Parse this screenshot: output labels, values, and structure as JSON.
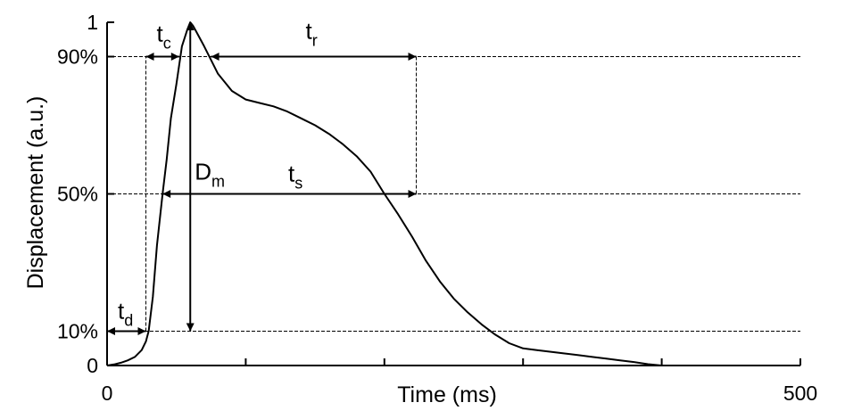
{
  "chart_data": {
    "type": "line",
    "title": "",
    "xlabel": "Time (ms)",
    "ylabel": "Displacement (a.u.)",
    "xlim": [
      0,
      500
    ],
    "ylim": [
      0,
      1
    ],
    "x_tick_values": [
      0,
      100,
      200,
      300,
      400,
      500
    ],
    "x_tick_labels": [
      "0",
      "",
      "",
      "",
      "",
      "500"
    ],
    "y_tick_values": [
      0,
      0.1,
      0.5,
      0.9,
      1
    ],
    "y_tick_labels": [
      "0",
      "10%",
      "50%",
      "90%",
      "1"
    ],
    "grid": false,
    "legend": "none",
    "series": [
      {
        "x": [
          0,
          5,
          10,
          15,
          20,
          25,
          28,
          30,
          33,
          36,
          40,
          43,
          46,
          50,
          54,
          58,
          60,
          62,
          64,
          66,
          70,
          75,
          80,
          90,
          100,
          110,
          120,
          130,
          140,
          150,
          160,
          170,
          180,
          190,
          200,
          210,
          220,
          230,
          240,
          250,
          260,
          270,
          280,
          290,
          300,
          310,
          320,
          330,
          340,
          350,
          360,
          370,
          380,
          390,
          400,
          410,
          420,
          430,
          440
        ],
        "y": [
          0,
          0.003,
          0.008,
          0.015,
          0.025,
          0.045,
          0.07,
          0.1,
          0.2,
          0.35,
          0.5,
          0.6,
          0.72,
          0.82,
          0.93,
          0.98,
          1.0,
          0.99,
          0.975,
          0.96,
          0.93,
          0.89,
          0.85,
          0.8,
          0.775,
          0.765,
          0.755,
          0.74,
          0.72,
          0.7,
          0.675,
          0.645,
          0.61,
          0.565,
          0.5,
          0.44,
          0.375,
          0.305,
          0.245,
          0.195,
          0.155,
          0.12,
          0.09,
          0.065,
          0.05,
          0.045,
          0.04,
          0.035,
          0.03,
          0.025,
          0.02,
          0.015,
          0.01,
          0.004,
          0.0,
          0.0,
          0.0,
          0.0,
          0.0
        ]
      }
    ],
    "reference_lines": [
      {
        "y": 0.9,
        "label": "90%"
      },
      {
        "y": 0.5,
        "label": "50%"
      },
      {
        "y": 0.1,
        "label": "10%"
      }
    ],
    "marker_lines": [
      {
        "x": 28,
        "y0": 0.1,
        "y1": 0.9
      },
      {
        "x": 223,
        "y0": 0.5,
        "y1": 0.9
      }
    ],
    "annotations": [
      {
        "name": "td",
        "base": "t",
        "sub": "d",
        "x0": 0,
        "x1": 28,
        "y": 0.1,
        "arrow": "both"
      },
      {
        "name": "tc",
        "base": "t",
        "sub": "c",
        "x0": 28,
        "x1": 52,
        "y": 0.9,
        "arrow": "both"
      },
      {
        "name": "tr",
        "base": "t",
        "sub": "r",
        "x0": 75,
        "x1": 223,
        "y": 0.9,
        "arrow": "both"
      },
      {
        "name": "ts",
        "base": "t",
        "sub": "s",
        "x0": 40,
        "x1": 223,
        "y": 0.5,
        "arrow": "both"
      },
      {
        "name": "Dm",
        "base": "D",
        "sub": "m",
        "x": 60,
        "y0": 0.1,
        "y1": 1.0,
        "arrow": "both"
      }
    ]
  }
}
